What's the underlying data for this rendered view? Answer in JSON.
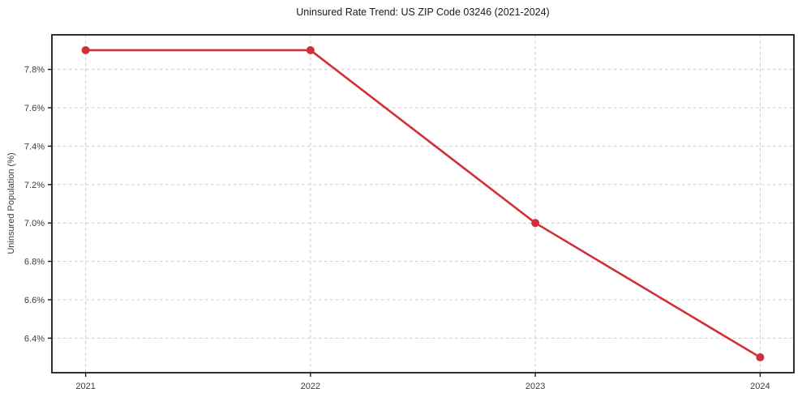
{
  "chart_data": {
    "type": "line",
    "title": "Uninsured Rate Trend: US ZIP Code 03246 (2021-2024)",
    "xlabel": "",
    "ylabel": "Uninsured Population (%)",
    "x": [
      2021,
      2022,
      2023,
      2024
    ],
    "x_tick_labels": [
      "2021",
      "2022",
      "2023",
      "2024"
    ],
    "series": [
      {
        "name": "Uninsured Population (%)",
        "values": [
          7.9,
          7.9,
          7.0,
          6.3
        ]
      }
    ],
    "y_tick_values": [
      6.4,
      6.6,
      6.8,
      7.0,
      7.2,
      7.4,
      7.6,
      7.8
    ],
    "y_tick_labels": [
      "6.4%",
      "6.6%",
      "6.8%",
      "7.0%",
      "7.2%",
      "7.4%",
      "7.6%",
      "7.8%"
    ],
    "xlim": [
      2020.85,
      2024.15
    ],
    "ylim": [
      6.22,
      7.98
    ],
    "grid": true,
    "grid_style": "dashed",
    "legend": false,
    "line_color": "#d32f3a",
    "marker": "circle",
    "marker_radius": 5,
    "background_color": "#ffffff"
  }
}
